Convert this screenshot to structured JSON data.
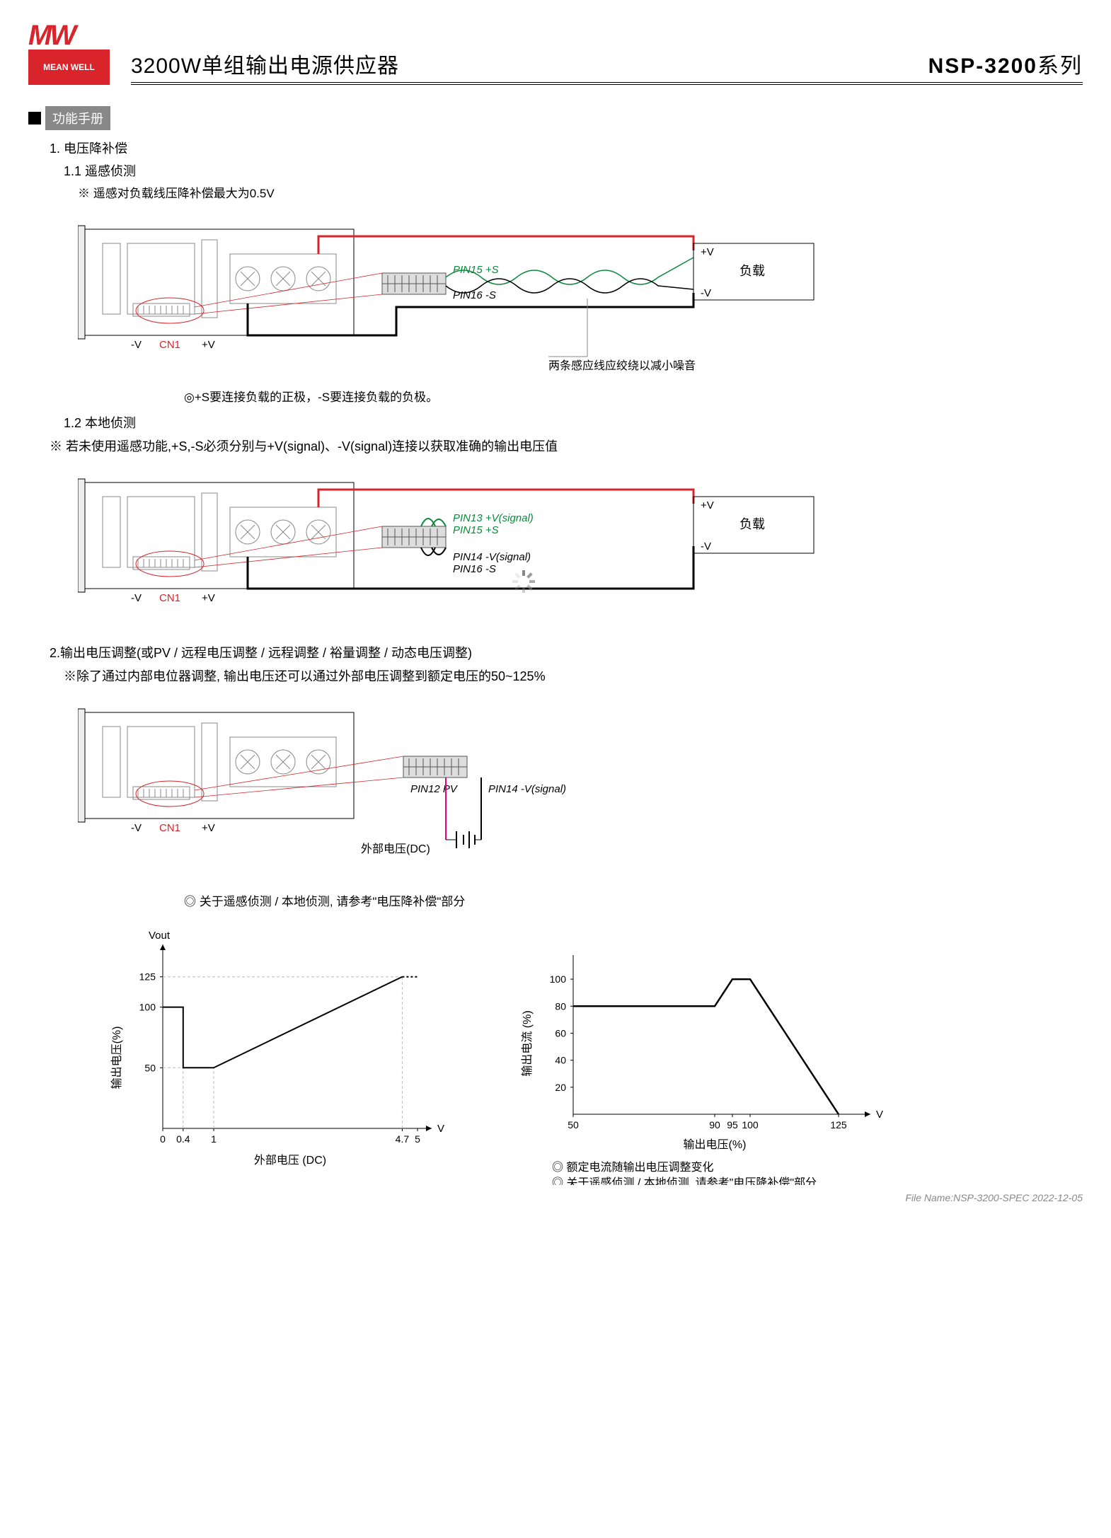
{
  "logo": {
    "brand": "MEAN WELL",
    "mw": "MW"
  },
  "header": {
    "title_left": "3200W单组输出电源供应器",
    "title_right_model": "NSP-3200",
    "title_right_series": "系列"
  },
  "manual_label": "功能手册",
  "sec1": {
    "num": "1. 电压降补偿",
    "sub1_1": "1.1 遥感侦测",
    "note1_1": "※ 遥感对负载线压降补偿最大为0.5V",
    "fig1": {
      "pin15": "PIN15 +S",
      "pin16": "PIN16 -S",
      "plusV": "+V",
      "minusV": "-V",
      "load": "负载",
      "cn1": "CN1",
      "neg": "-V",
      "pos": "+V",
      "twist_note": "两条感应线应绞绕以减小噪音",
      "annot": "◎+S要连接负载的正极，-S要连接负载的负极。"
    },
    "sub1_2": "1.2 本地侦测",
    "note1_2": "※ 若未使用遥感功能,+S,-S必须分别与+V(signal)、-V(signal)连接以获取准确的输出电压值",
    "fig2": {
      "pin13": "PIN13 +V(signal)",
      "pin15": "PIN15 +S",
      "pin14": "PIN14 -V(signal)",
      "pin16": "PIN16 -S",
      "plusV": "+V",
      "minusV": "-V",
      "load": "负载",
      "cn1": "CN1",
      "neg": "-V",
      "pos": "+V"
    }
  },
  "sec2": {
    "head": "2.输出电压调整(或PV / 远程电压调整 / 远程调整 / 裕量调整 / 动态电压调整)",
    "note": "※除了通过内部电位器调整, 输出电压还可以通过外部电压调整到额定电压的50~125%",
    "fig3": {
      "pin12": "PIN12 PV",
      "pin14": "PIN14 -V(signal)",
      "ext": "外部电压(DC)",
      "cn1": "CN1",
      "neg": "-V",
      "pos": "+V",
      "annot": "◎ 关于遥感侦测 / 本地侦测, 请参考\"电压降补偿\"部分"
    }
  },
  "chart1": {
    "type": "line",
    "vout": "Vout",
    "ylabel": "输出电压(%)",
    "xlabel": "外部电压 (DC)",
    "xunits": "V",
    "xticks": [
      "0",
      "0.4",
      "1",
      "4.7",
      "5"
    ],
    "yticks": [
      "50",
      "100",
      "125"
    ],
    "points": [
      [
        0,
        100
      ],
      [
        0.4,
        100
      ],
      [
        0.4,
        50
      ],
      [
        1,
        50
      ],
      [
        4.7,
        125
      ]
    ],
    "dash_after": [
      [
        4.7,
        125
      ],
      [
        5,
        125
      ]
    ],
    "line_color": "#000",
    "dash_color": "#888",
    "grid_color": "#bbb"
  },
  "chart2": {
    "type": "line",
    "ylabel": "输出电流 (%)",
    "xlabel": "输出电压(%)",
    "xunits": "V",
    "xticks": [
      "50",
      "90",
      "95",
      "100",
      "125"
    ],
    "yticks": [
      "20",
      "40",
      "60",
      "80",
      "100"
    ],
    "points": [
      [
        50,
        80
      ],
      [
        90,
        80
      ],
      [
        95,
        100
      ],
      [
        100,
        100
      ],
      [
        125,
        0
      ]
    ],
    "line_color": "#000",
    "grid_color": "#ddd",
    "annot1": "◎ 额定电流随输出电压调整变化",
    "annot2": "◎ 关于遥感侦测 / 本地侦测, 请参考\"电压降补偿\"部分"
  },
  "colors": {
    "red": "#d8242a",
    "green": "#0a8a3a",
    "pink": "#e6007e",
    "gray": "#888",
    "black": "#000"
  },
  "footer": "File Name:NSP-3200-SPEC   2022-12-05"
}
